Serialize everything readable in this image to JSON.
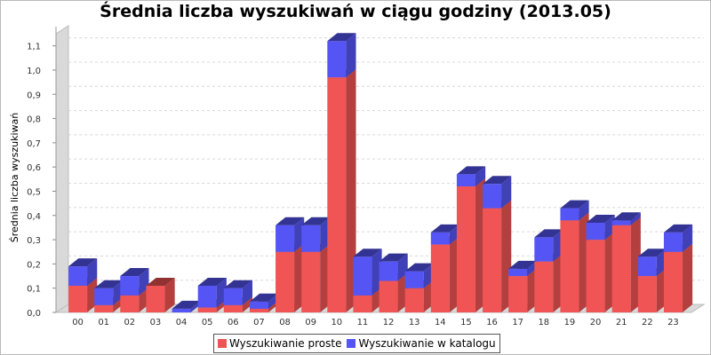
{
  "chart_data": {
    "type": "bar",
    "stacked": true,
    "style": "3d",
    "title": "Średnia liczba wyszukiwań w ciągu godziny (2013.05)",
    "xlabel": "",
    "ylabel": "Średnia liczba wyszukiwań",
    "ylim": [
      0,
      1.15
    ],
    "yticks": [
      "0,0",
      "0,1",
      "0,2",
      "0,3",
      "0,4",
      "0,5",
      "0,6",
      "0,7",
      "0,8",
      "0,9",
      "1,0",
      "1,1"
    ],
    "categories": [
      "00",
      "01",
      "02",
      "03",
      "04",
      "05",
      "06",
      "07",
      "08",
      "09",
      "10",
      "11",
      "12",
      "13",
      "14",
      "15",
      "16",
      "17",
      "18",
      "19",
      "20",
      "21",
      "22",
      "23"
    ],
    "series": [
      {
        "name": "Wyszukiwanie proste",
        "color": "#f05454",
        "values": [
          0.11,
          0.03,
          0.07,
          0.11,
          0.0,
          0.02,
          0.03,
          0.015,
          0.25,
          0.25,
          0.97,
          0.07,
          0.13,
          0.1,
          0.28,
          0.52,
          0.43,
          0.15,
          0.21,
          0.38,
          0.3,
          0.36,
          0.15,
          0.25
        ]
      },
      {
        "name": "Wyszukiwanie w katalogu",
        "color": "#5555f5",
        "values": [
          0.08,
          0.07,
          0.08,
          0.0,
          0.015,
          0.09,
          0.07,
          0.03,
          0.11,
          0.11,
          0.15,
          0.16,
          0.08,
          0.07,
          0.05,
          0.05,
          0.1,
          0.03,
          0.1,
          0.05,
          0.07,
          0.02,
          0.08,
          0.08
        ]
      }
    ],
    "legend_position": "bottom",
    "grid": true
  }
}
